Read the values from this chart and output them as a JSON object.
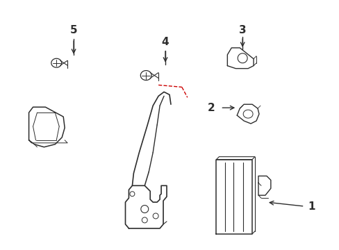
{
  "bg_color": "#ffffff",
  "line_color": "#2d2d2d",
  "red_dash_color": "#cc0000",
  "figsize": [
    4.89,
    3.6
  ],
  "dpi": 100
}
